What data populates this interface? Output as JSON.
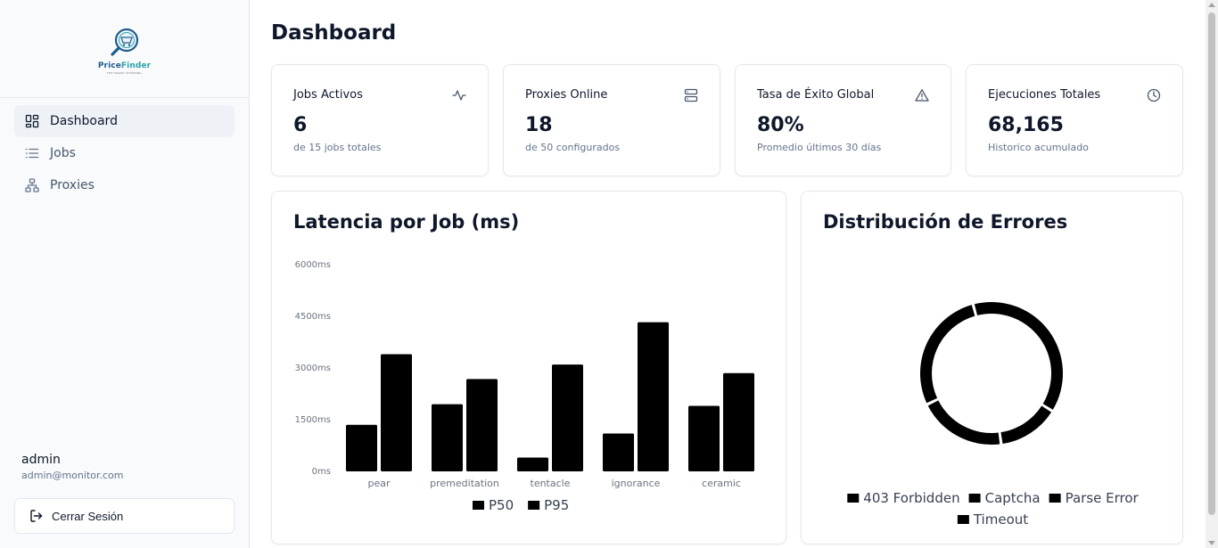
{
  "brand": {
    "name_part1": "Price",
    "name_part2": "Finder",
    "tagline": "THE SMART SHOPPING"
  },
  "sidebar": {
    "items": [
      {
        "label": "Dashboard",
        "icon": "dashboard-icon",
        "active": true
      },
      {
        "label": "Jobs",
        "icon": "list-icon",
        "active": false
      },
      {
        "label": "Proxies",
        "icon": "network-icon",
        "active": false
      }
    ],
    "user": {
      "name": "admin",
      "email": "admin@monitor.com"
    },
    "logout_label": "Cerrar Sesión"
  },
  "page": {
    "title": "Dashboard"
  },
  "stats": [
    {
      "title": "Jobs Activos",
      "value": "6",
      "sub": "de 15 jobs totales",
      "icon": "activity-icon"
    },
    {
      "title": "Proxies Online",
      "value": "18",
      "sub": "de 50 configurados",
      "icon": "server-icon"
    },
    {
      "title": "Tasa de Éxito Global",
      "value": "80%",
      "sub": "Promedio últimos 30 días",
      "icon": "alert-triangle-icon"
    },
    {
      "title": "Ejecuciones Totales",
      "value": "68,165",
      "sub": "Historico acumulado",
      "icon": "clock-icon"
    }
  ],
  "latency_panel": {
    "title": "Latencia por Job (ms)"
  },
  "errors_panel": {
    "title": "Distribución de Errores"
  },
  "colors": {
    "bar": "#000000",
    "donut": "#000000",
    "muted_text": "#6b7280"
  },
  "chart_data": [
    {
      "type": "bar",
      "categories": [
        "pear",
        "premeditation",
        "tentacle",
        "ignorance",
        "ceramic"
      ],
      "series": [
        {
          "name": "P50",
          "values": [
            1350,
            1950,
            400,
            1100,
            1900
          ]
        },
        {
          "name": "P95",
          "values": [
            3400,
            2680,
            3100,
            4330,
            2850
          ]
        }
      ],
      "yticks": [
        "0ms",
        "1500ms",
        "3000ms",
        "4500ms",
        "6000ms"
      ],
      "ylim": [
        0,
        6000
      ],
      "legend_position": "bottom"
    },
    {
      "type": "pie",
      "labels": [
        "403 Forbidden",
        "Captcha",
        "Parse Error",
        "Timeout"
      ],
      "values": [
        38,
        14,
        20,
        28
      ],
      "legend_position": "bottom"
    }
  ]
}
